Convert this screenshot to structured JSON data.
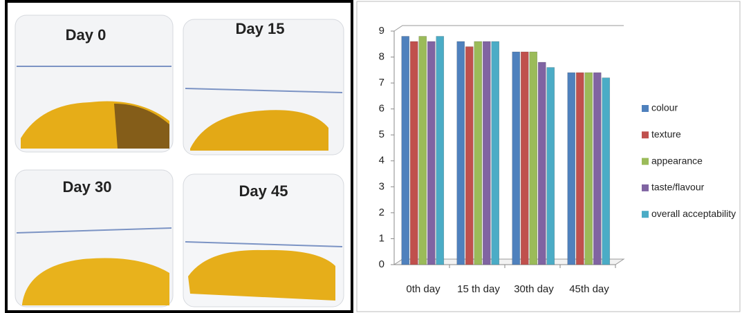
{
  "photos": {
    "labels": [
      "Day 0",
      "Day 15",
      "Day 30",
      "Day 45"
    ]
  },
  "chart_data": {
    "type": "bar",
    "categories": [
      "0th day",
      "15 th day",
      "30th day",
      "45th day"
    ],
    "series": [
      {
        "name": "colour",
        "color": "#4f81bd",
        "values": [
          8.8,
          8.6,
          8.2,
          7.4
        ]
      },
      {
        "name": "texture",
        "color": "#c0504d",
        "values": [
          8.6,
          8.4,
          8.2,
          7.4
        ]
      },
      {
        "name": "appearance",
        "color": "#9bbb59",
        "values": [
          8.8,
          8.6,
          8.2,
          7.4
        ]
      },
      {
        "name": "taste/flavour",
        "color": "#8064a2",
        "values": [
          8.6,
          8.6,
          7.8,
          7.4
        ]
      },
      {
        "name": "overall acceptability",
        "color": "#4bacc6",
        "values": [
          8.8,
          8.6,
          7.6,
          7.2
        ]
      }
    ],
    "ylim": [
      0,
      9
    ],
    "yticks": [
      0,
      1,
      2,
      3,
      4,
      5,
      6,
      7,
      8,
      9
    ],
    "grid": false,
    "legend": "right"
  }
}
